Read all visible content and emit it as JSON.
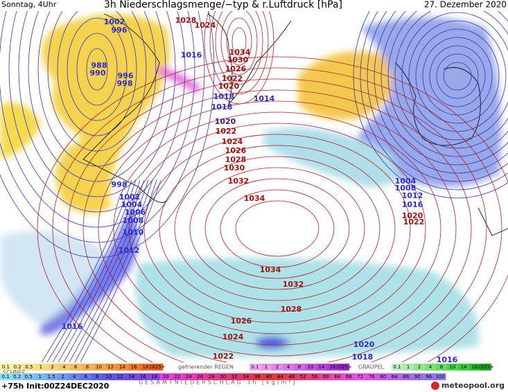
{
  "header": {
    "day": "Sonntag, 4Uhr",
    "title": "3h Niederschlagsmenge/−typ & r.Luftdruck [hPa]",
    "date": "27. Dezember 2020"
  },
  "isobar_labels": [
    {
      "text": "1002",
      "color": "#2a2ad0"
    },
    {
      "text": "996",
      "color": "#2a2ad0"
    },
    {
      "text": "988",
      "color": "#2a2ad0"
    },
    {
      "text": "990",
      "color": "#2a2ad0"
    },
    {
      "text": "996",
      "color": "#2a2ad0"
    },
    {
      "text": "998",
      "color": "#2a2ad0"
    },
    {
      "text": "1016",
      "color": "#2a2ad0"
    },
    {
      "text": "1018",
      "color": "#2a2ad0"
    },
    {
      "text": "1018",
      "color": "#2a2ad0"
    },
    {
      "text": "1014",
      "color": "#2a2ad0"
    },
    {
      "text": "1020",
      "color": "#3a1a70"
    },
    {
      "text": "1004",
      "color": "#2a2ad0"
    },
    {
      "text": "1008",
      "color": "#2a2ad0"
    },
    {
      "text": "1012",
      "color": "#2a2ad0"
    },
    {
      "text": "1016",
      "color": "#2a2ad0"
    },
    {
      "text": "1020",
      "color": "#a01010"
    },
    {
      "text": "1022",
      "color": "#a01010"
    },
    {
      "text": "998",
      "color": "#2a2ad0"
    },
    {
      "text": "1002",
      "color": "#2a2ad0"
    },
    {
      "text": "1004",
      "color": "#2a2ad0"
    },
    {
      "text": "1006",
      "color": "#2a2ad0"
    },
    {
      "text": "1008",
      "color": "#2a2ad0"
    },
    {
      "text": "1010",
      "color": "#2a2ad0"
    },
    {
      "text": "1012",
      "color": "#2a2ad0"
    },
    {
      "text": "1016",
      "color": "#2a2ad0"
    },
    {
      "text": "1020",
      "color": "#2a2ad0"
    },
    {
      "text": "1018",
      "color": "#2a2ad0"
    },
    {
      "text": "1016",
      "color": "#2a2ad0"
    },
    {
      "text": "1028",
      "color": "#a01010"
    },
    {
      "text": "1024",
      "color": "#a01010"
    },
    {
      "text": "1034",
      "color": "#a01010"
    },
    {
      "text": "1030",
      "color": "#a01010"
    },
    {
      "text": "1026",
      "color": "#a01010"
    },
    {
      "text": "1022",
      "color": "#a01010"
    },
    {
      "text": "1020",
      "color": "#a01010"
    },
    {
      "text": "1022",
      "color": "#a01010"
    },
    {
      "text": "1024",
      "color": "#a01010"
    },
    {
      "text": "1026",
      "color": "#a01010"
    },
    {
      "text": "1028",
      "color": "#a01010"
    },
    {
      "text": "1030",
      "color": "#a01010"
    },
    {
      "text": "1032",
      "color": "#a01010"
    },
    {
      "text": "1034",
      "color": "#a01010"
    },
    {
      "text": "1034",
      "color": "#a01010"
    },
    {
      "text": "1032",
      "color": "#a01010"
    },
    {
      "text": "1028",
      "color": "#a01010"
    },
    {
      "text": "1026",
      "color": "#a01010"
    },
    {
      "text": "1024",
      "color": "#a01010"
    },
    {
      "text": "1022",
      "color": "#a01010"
    }
  ],
  "legend": {
    "snow": {
      "label": "SCHNEE",
      "steps": [
        "0.1",
        "0.2",
        "0.5",
        "1",
        "2",
        "4",
        "6",
        "8",
        "10",
        "12",
        "14",
        "16",
        "18",
        "2025+"
      ]
    },
    "freezing_rain": {
      "label": "gefrierender REGEN",
      "steps": [
        "0.1",
        "1",
        "2",
        "4",
        "8",
        "10",
        "14",
        "16",
        "2025+"
      ]
    },
    "graupel": {
      "label": "GRAUPEL",
      "steps": [
        "0.1",
        "1",
        "2",
        "4",
        "8",
        "10",
        "14",
        "16",
        "2025+"
      ]
    },
    "total": {
      "label": "GESAMTNIEDERSCHLAG 3h [kg/m²]",
      "steps": [
        "0.1",
        "0.2",
        "0.5",
        "1",
        "1.5",
        "2",
        "4",
        "6",
        "8",
        "10",
        "12",
        "14",
        "16",
        "18",
        "20",
        "22",
        "24",
        "26",
        "28",
        "30",
        "32",
        "34",
        "36",
        "40",
        "44",
        "48",
        "52",
        "56",
        "60",
        "64",
        "68",
        "72",
        "76",
        "80",
        "84",
        "88",
        "92",
        "96",
        "100"
      ]
    }
  },
  "footer": {
    "run": "+75h Init:00Z24DEC2020",
    "brand": "meteopool.org"
  }
}
